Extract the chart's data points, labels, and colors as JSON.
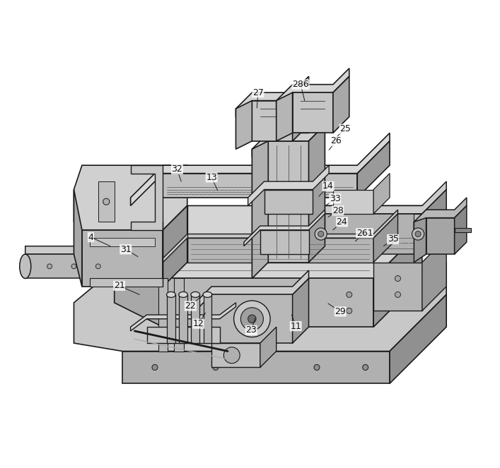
{
  "background_color": "#ffffff",
  "fig_width": 7.07,
  "fig_height": 6.63,
  "dpi": 100,
  "label_points": {
    "27": [
      0.455,
      0.92,
      0.452,
      0.882
    ],
    "286": [
      0.56,
      0.94,
      0.57,
      0.9
    ],
    "25": [
      0.67,
      0.83,
      0.638,
      0.8
    ],
    "26": [
      0.648,
      0.8,
      0.63,
      0.778
    ],
    "32": [
      0.255,
      0.73,
      0.265,
      0.7
    ],
    "13": [
      0.34,
      0.71,
      0.355,
      0.678
    ],
    "14": [
      0.628,
      0.688,
      0.605,
      0.663
    ],
    "33": [
      0.645,
      0.658,
      0.622,
      0.64
    ],
    "28": [
      0.652,
      0.628,
      0.628,
      0.612
    ],
    "24": [
      0.662,
      0.6,
      0.64,
      0.58
    ],
    "261": [
      0.718,
      0.572,
      0.695,
      0.552
    ],
    "35": [
      0.788,
      0.557,
      0.765,
      0.54
    ],
    "4": [
      0.042,
      0.562,
      0.09,
      0.54
    ],
    "31": [
      0.128,
      0.532,
      0.158,
      0.514
    ],
    "21": [
      0.112,
      0.442,
      0.162,
      0.42
    ],
    "22": [
      0.288,
      0.392,
      0.31,
      0.412
    ],
    "12": [
      0.308,
      0.348,
      0.325,
      0.375
    ],
    "23": [
      0.438,
      0.332,
      0.448,
      0.362
    ],
    "11": [
      0.548,
      0.342,
      0.538,
      0.37
    ],
    "29": [
      0.658,
      0.378,
      0.628,
      0.398
    ]
  }
}
